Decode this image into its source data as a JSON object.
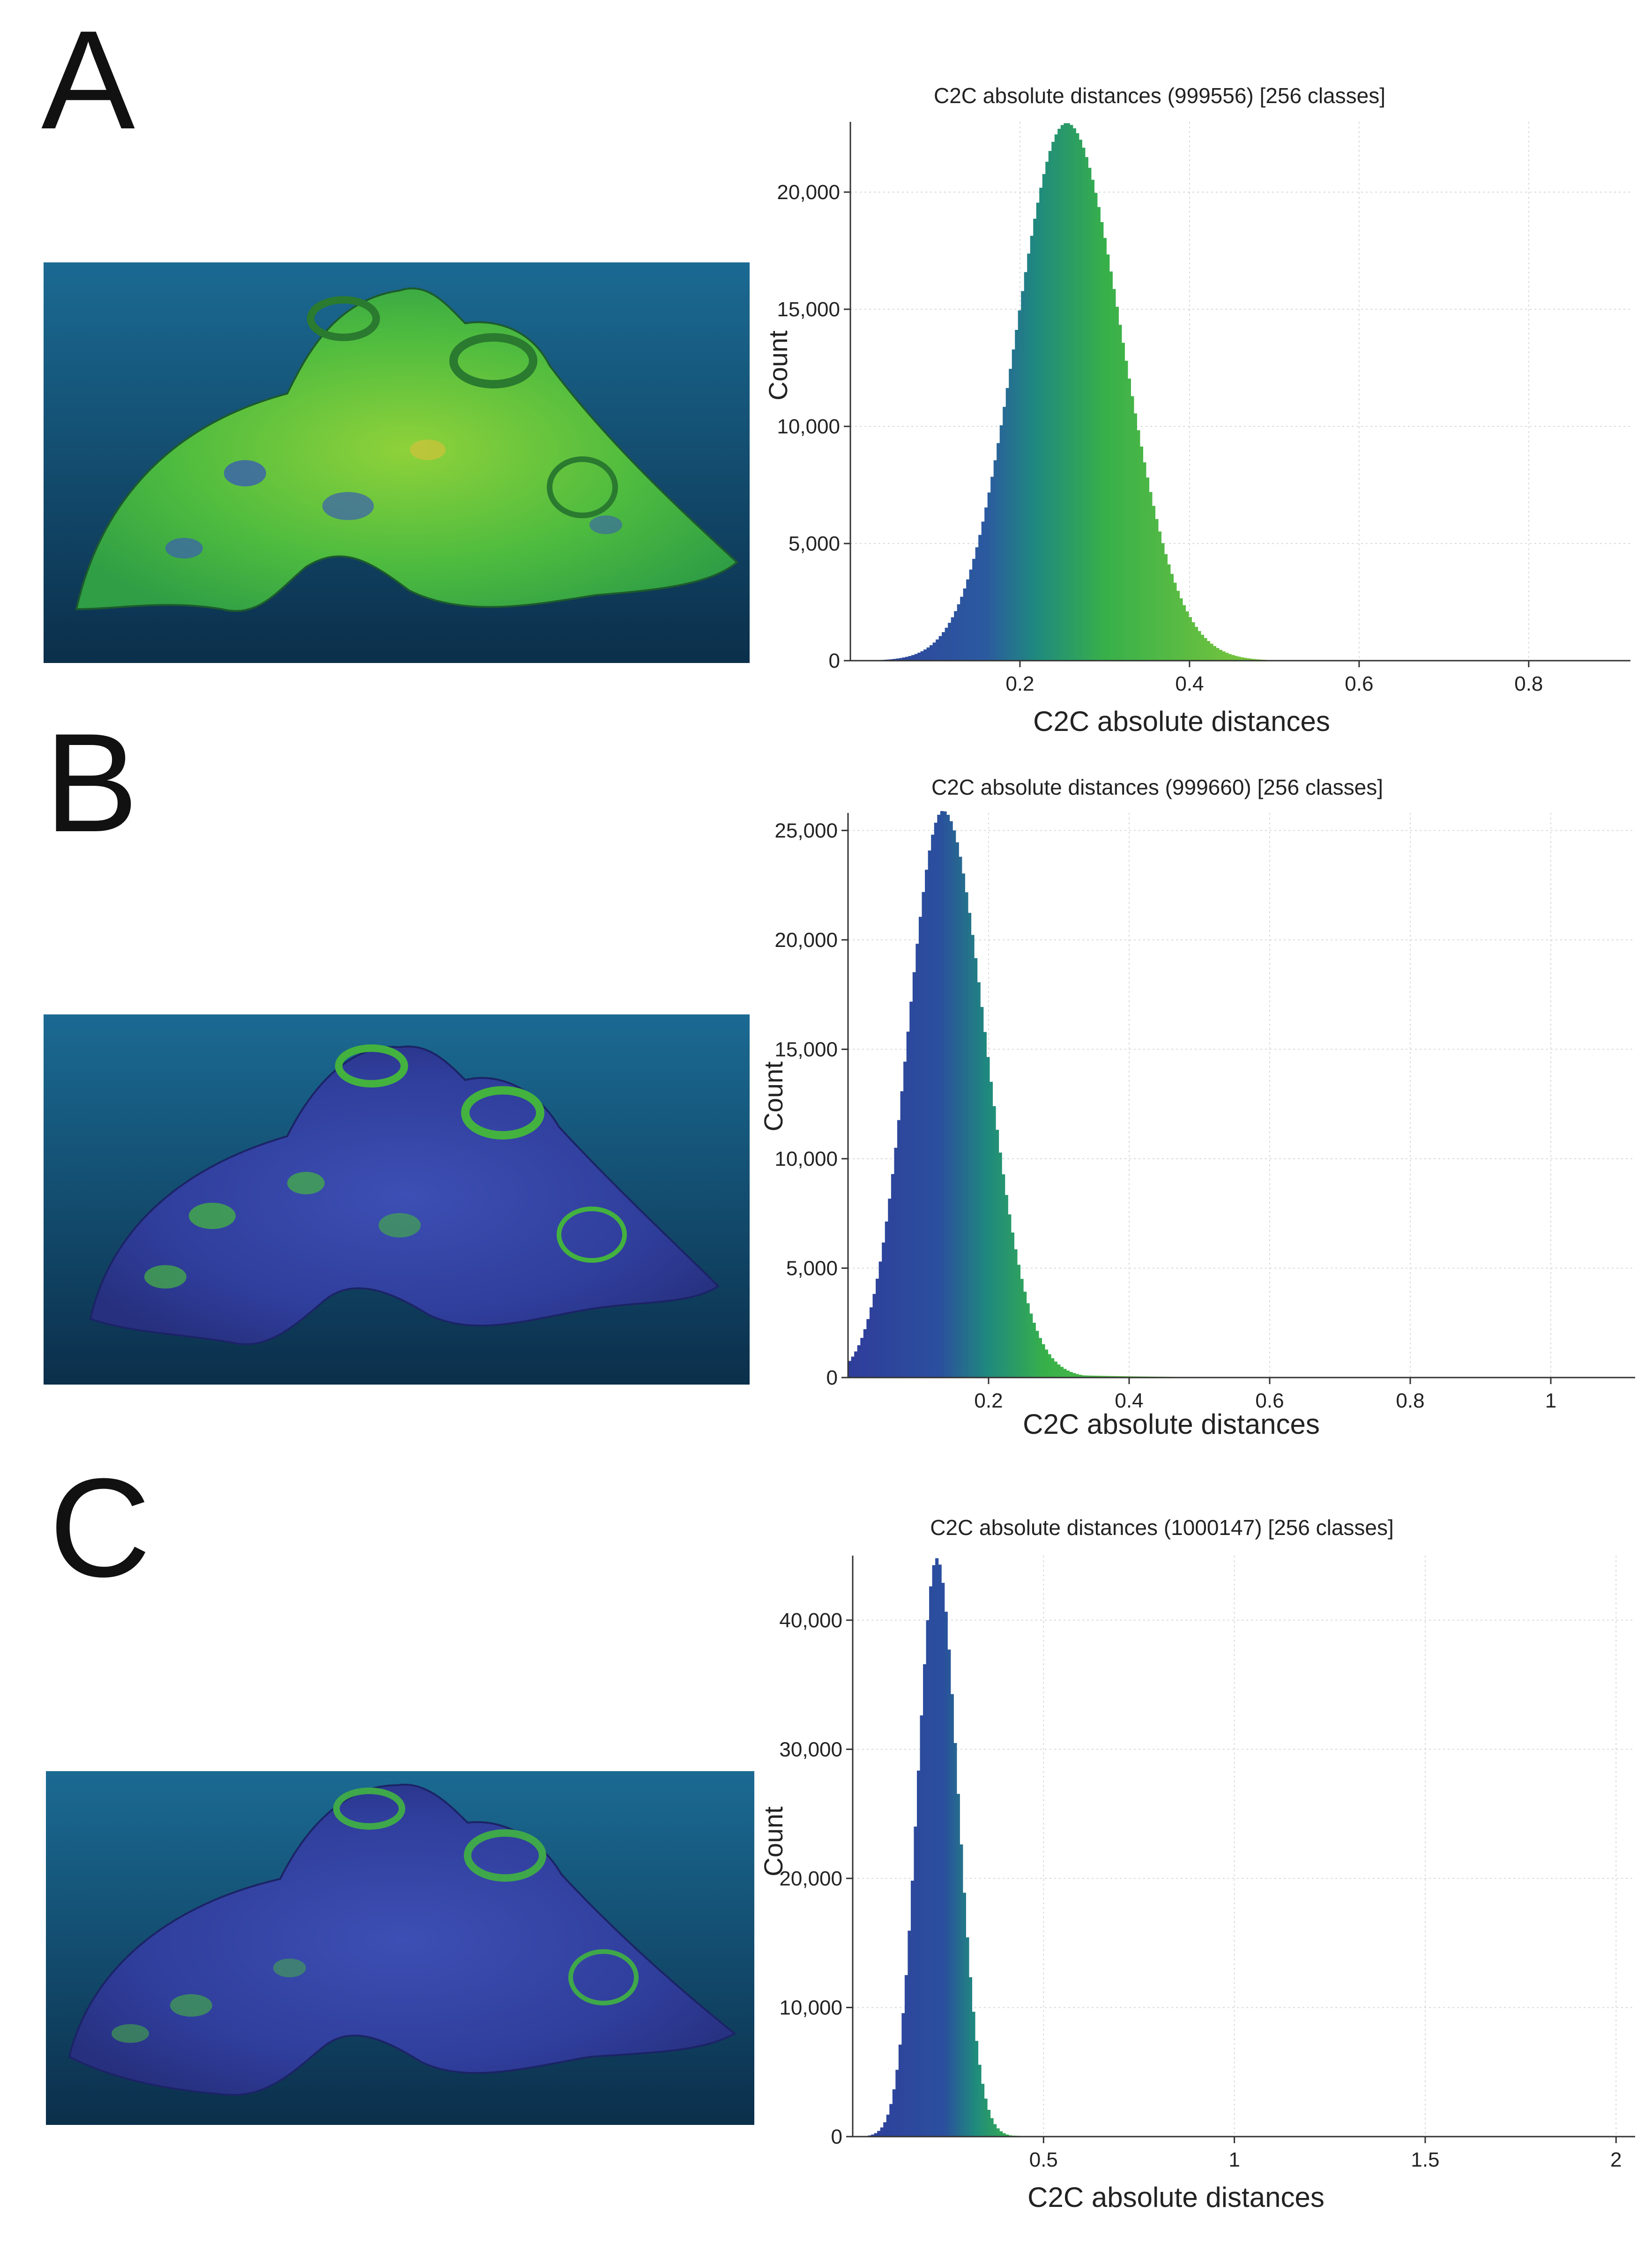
{
  "panels": [
    {
      "letter": "A",
      "render_alt": "3D model colored by C2C distance (mostly green)"
    },
    {
      "letter": "B",
      "render_alt": "3D model colored by C2C distance (mostly blue)"
    },
    {
      "letter": "C",
      "render_alt": "3D model colored by C2C distance (mostly blue)"
    }
  ],
  "colors": {
    "blue": "#2f3d9a",
    "teal": "#1e7a8c",
    "green": "#37b04a",
    "yellowgreen": "#a9d63a",
    "bg_top": "#1b6a93",
    "bg_bottom": "#0b2f4b"
  },
  "chart_data": [
    {
      "type": "bar",
      "title": "C2C absolute distances (999556) [256 classes]",
      "xlabel": "C2C absolute distances",
      "ylabel": "Count",
      "xlim": [
        0,
        0.92
      ],
      "ylim": [
        0,
        23000
      ],
      "xticks": [
        0.2,
        0.4,
        0.6,
        0.8
      ],
      "xtick_labels": [
        "0.2",
        "0.4",
        "0.6",
        "0.8"
      ],
      "yticks": [
        0,
        5000,
        10000,
        15000,
        20000
      ],
      "ytick_labels": [
        "0",
        "5,000",
        "10,000",
        "15,000",
        "20,000"
      ],
      "bins": 256,
      "series": [
        {
          "name": "Count",
          "distribution": {
            "mode": 0.255,
            "peak": 22950,
            "sigma_left": 0.06,
            "sigma_right": 0.065,
            "tail": 0.06
          }
        }
      ],
      "color_stops": [
        [
          0.0,
          "#2f3d9a"
        ],
        [
          0.16,
          "#2b5aa0"
        ],
        [
          0.22,
          "#1f8a7e"
        ],
        [
          0.3,
          "#37b04a"
        ],
        [
          0.48,
          "#7cc63c"
        ],
        [
          0.7,
          "#c9d93a"
        ]
      ]
    },
    {
      "type": "bar",
      "title": "C2C absolute distances (999660) [256 classes]",
      "xlabel": "C2C absolute distances",
      "ylabel": "Count",
      "xlim": [
        0,
        1.12
      ],
      "ylim": [
        0,
        25800
      ],
      "xticks": [
        0.2,
        0.4,
        0.6,
        0.8,
        1.0
      ],
      "xtick_labels": [
        "0.2",
        "0.4",
        "0.6",
        "0.8",
        "1"
      ],
      "yticks": [
        0,
        5000,
        10000,
        15000,
        20000,
        25000
      ],
      "ytick_labels": [
        "0",
        "5,000",
        "10,000",
        "15,000",
        "20,000",
        "25,000"
      ],
      "bins": 256,
      "series": [
        {
          "name": "Count",
          "distribution": {
            "mode": 0.135,
            "peak": 25900,
            "sigma_left": 0.05,
            "sigma_right": 0.06,
            "tail": 0.12
          }
        }
      ],
      "color_stops": [
        [
          0.0,
          "#2f3d9a"
        ],
        [
          0.13,
          "#2b4f9e"
        ],
        [
          0.2,
          "#1f8a7e"
        ],
        [
          0.28,
          "#37b04a"
        ],
        [
          0.5,
          "#7cc63c"
        ],
        [
          0.8,
          "#c9d93a"
        ]
      ]
    },
    {
      "type": "bar",
      "title": "C2C absolute distances (1000147) [256 classes]",
      "xlabel": "C2C absolute distances",
      "ylabel": "Count",
      "xlim": [
        0,
        2.05
      ],
      "ylim": [
        0,
        45000
      ],
      "xticks": [
        0.5,
        1.0,
        1.5,
        2.0
      ],
      "xtick_labels": [
        "0.5",
        "1",
        "1.5",
        "2"
      ],
      "yticks": [
        0,
        10000,
        20000,
        30000,
        40000
      ],
      "ytick_labels": [
        "0",
        "10,000",
        "20,000",
        "30,000",
        "40,000"
      ],
      "bins": 256,
      "series": [
        {
          "name": "Count",
          "distribution": {
            "mode": 0.22,
            "peak": 44800,
            "sigma_left": 0.05,
            "sigma_right": 0.055,
            "tail": 0.08
          }
        }
      ],
      "color_stops": [
        [
          0.0,
          "#2f3d9a"
        ],
        [
          0.24,
          "#2b4f9e"
        ],
        [
          0.32,
          "#1f8a7e"
        ],
        [
          0.42,
          "#37b04a"
        ],
        [
          0.6,
          "#7cc63c"
        ],
        [
          1.0,
          "#c9d93a"
        ]
      ]
    }
  ]
}
